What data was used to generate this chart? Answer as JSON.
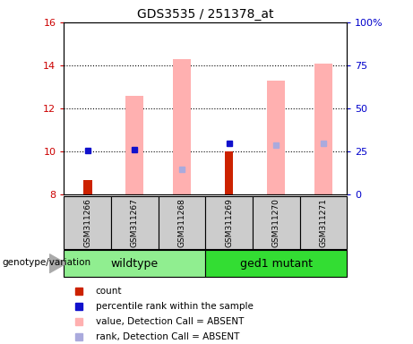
{
  "title": "GDS3535 / 251378_at",
  "samples": [
    "GSM311266",
    "GSM311267",
    "GSM311268",
    "GSM311269",
    "GSM311270",
    "GSM311271"
  ],
  "ylim_left": [
    8,
    16
  ],
  "ylim_right": [
    0,
    100
  ],
  "yticks_left": [
    8,
    10,
    12,
    14,
    16
  ],
  "yticks_right": [
    0,
    25,
    50,
    75,
    100
  ],
  "ytick_labels_right": [
    "0",
    "25",
    "50",
    "75",
    "100%"
  ],
  "red_bars": {
    "GSM311266": [
      8.0,
      8.65
    ],
    "GSM311267": null,
    "GSM311268": null,
    "GSM311269": [
      8.0,
      10.0
    ],
    "GSM311270": null,
    "GSM311271": null
  },
  "pink_bars": {
    "GSM311266": null,
    "GSM311267": [
      8.0,
      12.6
    ],
    "GSM311268": [
      8.0,
      14.3
    ],
    "GSM311269": null,
    "GSM311270": [
      8.0,
      13.3
    ],
    "GSM311271": [
      8.0,
      14.1
    ]
  },
  "blue_squares": {
    "GSM311266": 10.02,
    "GSM311267": 10.08,
    "GSM311268": null,
    "GSM311269": 10.38,
    "GSM311270": null,
    "GSM311271": null
  },
  "light_blue_squares": {
    "GSM311266": null,
    "GSM311267": null,
    "GSM311268": 9.15,
    "GSM311269": null,
    "GSM311270": 10.3,
    "GSM311271": 10.38
  },
  "red_bar_color": "#cc2200",
  "pink_bar_color": "#ffb0b0",
  "blue_square_color": "#1111cc",
  "light_blue_square_color": "#aaaadd",
  "legend_items": [
    {
      "label": "count",
      "color": "#cc2200"
    },
    {
      "label": "percentile rank within the sample",
      "color": "#1111cc"
    },
    {
      "label": "value, Detection Call = ABSENT",
      "color": "#ffb0b0"
    },
    {
      "label": "rank, Detection Call = ABSENT",
      "color": "#aaaadd"
    }
  ],
  "bg_color": "#ffffff",
  "axis_label_color_left": "#cc0000",
  "axis_label_color_right": "#0000cc",
  "sample_box_color": "#cccccc",
  "wildtype_color": "#90ee90",
  "ged1_color": "#33dd33",
  "genotype_label": "genotype/variation"
}
